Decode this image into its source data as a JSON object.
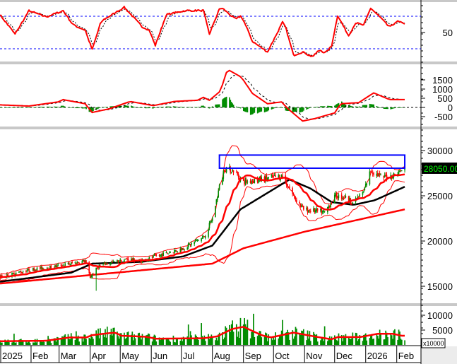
{
  "chart_data": [
    {
      "type": "line",
      "panel": "rsi",
      "y_ticks": [
        "50"
      ],
      "reference_levels": [
        70,
        30
      ],
      "ylim": [
        10,
        90
      ],
      "series": [
        {
          "color": "#ff0000",
          "points": [
            [
              "2025-01-01",
              72
            ],
            [
              "2025-01-16",
              48
            ],
            [
              "2025-01-30",
              77
            ],
            [
              "2025-02-16",
              69
            ],
            [
              "2025-03-05",
              77
            ],
            [
              "2025-03-15",
              59
            ],
            [
              "2025-03-27",
              53
            ],
            [
              "2025-04-03",
              29
            ],
            [
              "2025-04-12",
              64
            ],
            [
              "2025-05-05",
              81
            ],
            [
              "2025-05-23",
              57
            ],
            [
              "2025-05-30",
              53
            ],
            [
              "2025-06-05",
              34
            ],
            [
              "2025-06-16",
              72
            ],
            [
              "2025-07-05",
              77
            ],
            [
              "2025-07-23",
              77
            ],
            [
              "2025-07-29",
              48
            ],
            [
              "2025-08-09",
              82
            ],
            [
              "2025-08-24",
              66
            ],
            [
              "2025-08-30",
              71
            ],
            [
              "2025-09-10",
              39
            ],
            [
              "2025-09-25",
              26
            ],
            [
              "2025-10-11",
              65
            ],
            [
              "2025-10-21",
              22
            ],
            [
              "2025-10-30",
              26
            ],
            [
              "2025-11-09",
              20
            ],
            [
              "2025-11-16",
              29
            ],
            [
              "2025-11-22",
              24
            ],
            [
              "2025-11-28",
              34
            ],
            [
              "2025-12-04",
              71
            ],
            [
              "2025-12-15",
              46
            ],
            [
              "2025-12-22",
              62
            ],
            [
              "2025-12-30",
              59
            ],
            [
              "2026-01-06",
              80
            ],
            [
              "2026-01-16",
              68
            ],
            [
              "2026-01-25",
              56
            ],
            [
              "2026-02-01",
              64
            ],
            [
              "2026-02-08",
              61
            ]
          ]
        },
        {
          "color": "#000000",
          "style": "dashed",
          "derived": "signal"
        }
      ]
    },
    {
      "type": "line",
      "panel": "macd",
      "y_ticks": [
        "1500",
        "1000",
        "500",
        "0",
        "-500"
      ],
      "ylim": [
        -900,
        2300
      ],
      "series": [
        {
          "color": "#ff0000",
          "points": [
            [
              "2025-01-01",
              140
            ],
            [
              "2025-01-30",
              75
            ],
            [
              "2025-02-28",
              300
            ],
            [
              "2025-03-05",
              425
            ],
            [
              "2025-03-27",
              200
            ],
            [
              "2025-04-03",
              -275
            ],
            [
              "2025-04-20",
              -75
            ],
            [
              "2025-05-11",
              325
            ],
            [
              "2025-06-03",
              100
            ],
            [
              "2025-06-24",
              325
            ],
            [
              "2025-07-17",
              390
            ],
            [
              "2025-07-23",
              550
            ],
            [
              "2025-07-29",
              390
            ],
            [
              "2025-08-09",
              890
            ],
            [
              "2025-08-16",
              2075
            ],
            [
              "2025-08-30",
              1640
            ],
            [
              "2025-09-10",
              760
            ],
            [
              "2025-09-25",
              200
            ],
            [
              "2025-10-09",
              300
            ],
            [
              "2025-10-15",
              -50
            ],
            [
              "2025-10-30",
              -740
            ],
            [
              "2025-11-11",
              -610
            ],
            [
              "2025-12-01",
              -300
            ],
            [
              "2025-12-07",
              200
            ],
            [
              "2025-12-25",
              260
            ],
            [
              "2026-01-09",
              790
            ],
            [
              "2026-01-25",
              425
            ],
            [
              "2026-02-08",
              425
            ]
          ]
        },
        {
          "color": "#000000",
          "style": "dashed",
          "derived": "signal"
        },
        {
          "color": "#008c00",
          "type": "histogram",
          "derived": "macd-signal"
        }
      ]
    },
    {
      "type": "candlestick",
      "panel": "price",
      "y_ticks": [
        "30000",
        "25000",
        "20000",
        "15000"
      ],
      "ylim": [
        13800,
        31300
      ],
      "last_price_label": "28050.00",
      "close": [
        [
          "2025-01-01",
          16000
        ],
        [
          "2025-01-29",
          16800
        ],
        [
          "2025-02-26",
          17200
        ],
        [
          "2025-03-27",
          17800
        ],
        [
          "2025-04-01",
          16000
        ],
        [
          "2025-04-10",
          17300
        ],
        [
          "2025-05-08",
          18000
        ],
        [
          "2025-05-22",
          17800
        ],
        [
          "2025-06-12",
          18500
        ],
        [
          "2025-07-03",
          19200
        ],
        [
          "2025-07-24",
          20500
        ],
        [
          "2025-08-01",
          22500
        ],
        [
          "2025-08-08",
          26000
        ],
        [
          "2025-08-13",
          28000
        ],
        [
          "2025-08-22",
          27800
        ],
        [
          "2025-09-01",
          26500
        ],
        [
          "2025-09-19",
          26800
        ],
        [
          "2025-10-10",
          27200
        ],
        [
          "2025-10-21",
          25000
        ],
        [
          "2025-10-31",
          23500
        ],
        [
          "2025-11-21",
          23200
        ],
        [
          "2025-12-02",
          25000
        ],
        [
          "2025-12-12",
          24800
        ],
        [
          "2025-12-20",
          24200
        ],
        [
          "2025-12-30",
          25500
        ],
        [
          "2026-01-06",
          27800
        ],
        [
          "2026-01-17",
          27000
        ],
        [
          "2026-01-27",
          27200
        ],
        [
          "2026-02-09",
          28050
        ]
      ],
      "series": [
        {
          "color": "#000000",
          "points": [
            [
              "2025-01-01",
              15500
            ],
            [
              "2025-03-13",
              16500
            ],
            [
              "2025-04-03",
              17500
            ],
            [
              "2025-05-22",
              17700
            ],
            [
              "2025-07-03",
              18300
            ],
            [
              "2025-08-01",
              19500
            ],
            [
              "2025-08-29",
              23500
            ],
            [
              "2025-10-17",
              26800
            ],
            [
              "2025-11-07",
              25800
            ],
            [
              "2025-11-28",
              24300
            ],
            [
              "2025-12-20",
              24000
            ],
            [
              "2026-01-10",
              24500
            ],
            [
              "2026-02-09",
              26000
            ]
          ]
        },
        {
          "color": "#ff0000",
          "points": [
            [
              "2025-01-01",
              15300
            ],
            [
              "2025-08-01",
              17500
            ],
            [
              "2025-09-01",
              19200
            ],
            [
              "2025-10-31",
              21000
            ],
            [
              "2026-02-09",
              23500
            ]
          ]
        },
        {
          "color": "#ff0000",
          "derived": "moving-average"
        },
        {
          "color": "#ff0000",
          "derived": "bollinger-bands"
        }
      ],
      "annotations": [
        {
          "type": "rectangle",
          "color": "#0000ff",
          "x": [
            "2025-08-08",
            "2026-02-09"
          ],
          "y": [
            28050,
            29500
          ]
        }
      ]
    },
    {
      "type": "bar",
      "panel": "volume",
      "y_ticks": [
        "10000",
        "5000"
      ],
      "unit_label": "x10000",
      "ylim": [
        0,
        10000
      ],
      "bar_color": "#008c00",
      "average": [
        [
          "2025-01-01",
          1250
        ],
        [
          "2025-02-16",
          1400
        ],
        [
          "2025-03-11",
          2500
        ],
        [
          "2025-03-28",
          2500
        ],
        [
          "2025-04-03",
          3300
        ],
        [
          "2025-04-18",
          3900
        ],
        [
          "2025-04-26",
          4150
        ],
        [
          "2025-05-02",
          3100
        ],
        [
          "2025-05-26",
          2750
        ],
        [
          "2025-06-06",
          2100
        ],
        [
          "2025-07-23",
          2250
        ],
        [
          "2025-08-06",
          2900
        ],
        [
          "2025-08-21",
          5400
        ],
        [
          "2025-09-01",
          6100
        ],
        [
          "2025-09-19",
          3300
        ],
        [
          "2025-09-28",
          2500
        ],
        [
          "2025-10-21",
          4150
        ],
        [
          "2025-11-10",
          2900
        ],
        [
          "2025-11-28",
          1900
        ],
        [
          "2025-12-04",
          2650
        ],
        [
          "2025-12-27",
          2650
        ],
        [
          "2026-01-13",
          3750
        ],
        [
          "2026-01-28",
          3750
        ],
        [
          "2026-02-06",
          3100
        ]
      ]
    }
  ],
  "x_axis": {
    "labels": [
      {
        "text": "2025",
        "date": "2025-01-01"
      },
      {
        "text": "Feb",
        "date": "2025-02-01"
      },
      {
        "text": "Mar",
        "date": "2025-03-01"
      },
      {
        "text": "Apr",
        "date": "2025-04-01"
      },
      {
        "text": "May",
        "date": "2025-05-01"
      },
      {
        "text": "Jun",
        "date": "2025-06-01"
      },
      {
        "text": "Jul",
        "date": "2025-07-01"
      },
      {
        "text": "Aug",
        "date": "2025-08-01"
      },
      {
        "text": "Sep",
        "date": "2025-09-01"
      },
      {
        "text": "Oct",
        "date": "2025-10-01"
      },
      {
        "text": "Nov",
        "date": "2025-11-01"
      },
      {
        "text": "Dec",
        "date": "2025-12-01"
      },
      {
        "text": "2026",
        "date": "2026-01-01"
      },
      {
        "text": "Feb",
        "date": "2026-02-01"
      }
    ]
  },
  "colors": {
    "up": "#008c00",
    "down": "#ff0000",
    "ma": "#ff0000",
    "ma_long": "#000000",
    "rect": "#0000ff",
    "price_label_bg": "#000000",
    "price_label_fg": "#00ff00"
  }
}
